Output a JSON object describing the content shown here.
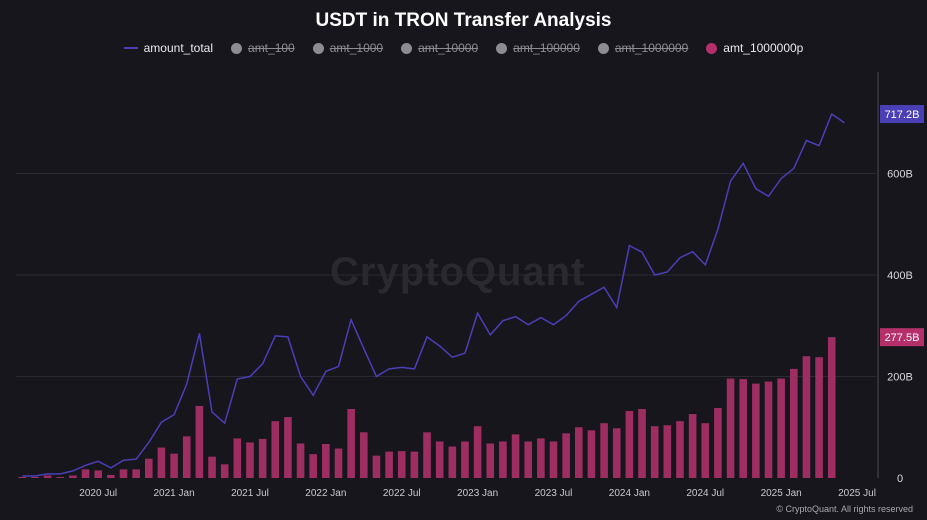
{
  "chart_data": {
    "type": "bar",
    "title": "USDT in TRON Transfer Analysis",
    "legend": [
      {
        "name": "amount_total",
        "state": "on",
        "kind": "line",
        "color": "#4b3fb8"
      },
      {
        "name": "amt_100",
        "state": "off"
      },
      {
        "name": "amt_1000",
        "state": "off"
      },
      {
        "name": "amt_10000",
        "state": "off"
      },
      {
        "name": "amt_100000",
        "state": "off"
      },
      {
        "name": "amt_1000000",
        "state": "off"
      },
      {
        "name": "amt_1000000p",
        "state": "on",
        "kind": "bar",
        "color": "#b5306a"
      }
    ],
    "x_tick_labels": [
      "2020 Jul",
      "2021 Jan",
      "2021 Jul",
      "2022 Jan",
      "2022 Jul",
      "2023 Jan",
      "2023 Jul",
      "2024 Jan",
      "2024 Jul",
      "2025 Jan",
      "2025 Jul"
    ],
    "y_tick_labels": [
      "0",
      "200B",
      "400B",
      "600B"
    ],
    "ylim": [
      0,
      800
    ],
    "y_unit": "B",
    "grid": true,
    "legend_position": "top-center",
    "x": [
      "2020-01",
      "2020-02",
      "2020-03",
      "2020-04",
      "2020-05",
      "2020-06",
      "2020-07",
      "2020-08",
      "2020-09",
      "2020-10",
      "2020-11",
      "2020-12",
      "2021-01",
      "2021-02",
      "2021-03",
      "2021-04",
      "2021-05",
      "2021-06",
      "2021-07",
      "2021-08",
      "2021-09",
      "2021-10",
      "2021-11",
      "2021-12",
      "2022-01",
      "2022-02",
      "2022-03",
      "2022-04",
      "2022-05",
      "2022-06",
      "2022-07",
      "2022-08",
      "2022-09",
      "2022-10",
      "2022-11",
      "2022-12",
      "2023-01",
      "2023-02",
      "2023-03",
      "2023-04",
      "2023-05",
      "2023-06",
      "2023-07",
      "2023-08",
      "2023-09",
      "2023-10",
      "2023-11",
      "2023-12",
      "2024-01",
      "2024-02",
      "2024-03",
      "2024-04",
      "2024-05",
      "2024-06",
      "2024-07",
      "2024-08",
      "2024-09",
      "2024-10",
      "2024-11",
      "2024-12",
      "2025-01",
      "2025-02",
      "2025-03",
      "2025-04",
      "2025-05",
      "2025-06",
      "2025-07",
      "2025-08"
    ],
    "series": [
      {
        "name": "amount_total",
        "values": [
          4,
          4,
          8,
          8,
          14,
          25,
          33,
          20,
          35,
          37,
          70,
          110,
          125,
          185,
          285,
          130,
          108,
          195,
          200,
          225,
          280,
          278,
          200,
          163,
          210,
          220,
          312,
          255,
          200,
          215,
          218,
          215,
          278,
          260,
          238,
          246,
          325,
          282,
          310,
          318,
          302,
          316,
          302,
          320,
          348,
          362,
          376,
          336,
          458,
          445,
          400,
          406,
          434,
          446,
          420,
          490,
          585,
          620,
          570,
          555,
          590,
          610,
          665,
          655,
          717.2,
          700,
          0,
          0
        ]
      },
      {
        "name": "amt_1000000p",
        "values": [
          2,
          2,
          5,
          2,
          5,
          17,
          15,
          6,
          17,
          17,
          38,
          60,
          48,
          82,
          142,
          42,
          27,
          78,
          70,
          77,
          112,
          120,
          68,
          47,
          67,
          58,
          136,
          90,
          44,
          52,
          53,
          52,
          90,
          72,
          62,
          72,
          102,
          68,
          72,
          86,
          72,
          78,
          72,
          88,
          100,
          94,
          108,
          98,
          132,
          136,
          102,
          104,
          112,
          126,
          108,
          138,
          196,
          195,
          186,
          190,
          196,
          215,
          240,
          238,
          277.5,
          0,
          0,
          0
        ]
      }
    ],
    "last_value_labels": {
      "amount_total": "717.2B",
      "amt_1000000p": "277.5B"
    }
  },
  "watermark": "CryptoQuant",
  "credit": "© CryptoQuant. All rights reserved"
}
